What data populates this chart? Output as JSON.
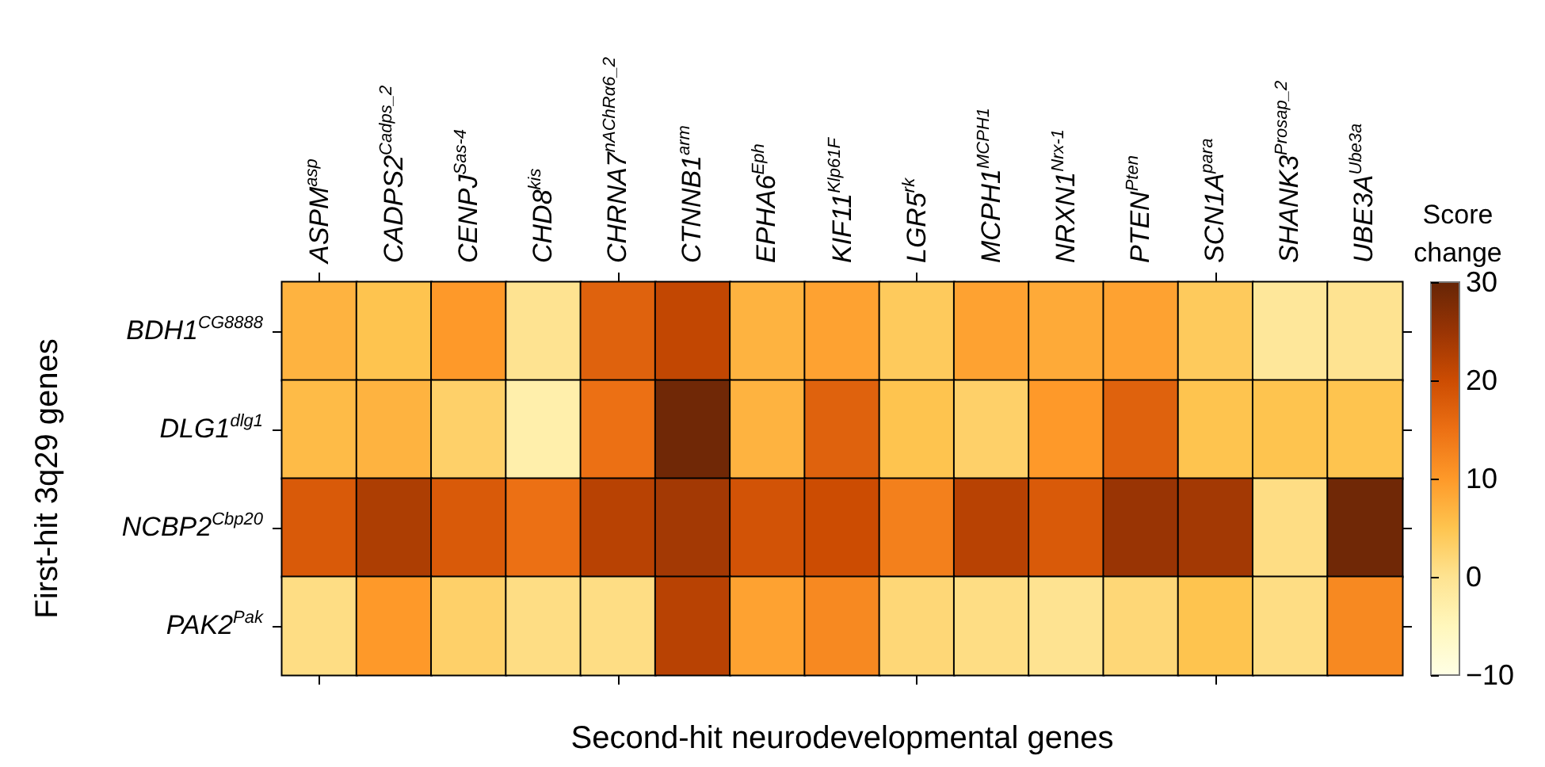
{
  "chart_data": {
    "type": "heatmap",
    "xlabel": "Second-hit neurodevelopmental genes",
    "ylabel": "First-hit 3q29 genes",
    "clabel": "Score change",
    "categories": [
      "ASPM$^{asp}$",
      "CADPS2$^{Cadps_2}$",
      "CENPJ$^{Sas-4}$",
      "CHD8$^{kis}$",
      "CHRNA7$^{nAChRα6_2}$",
      "CTNNB1$^{arm}$",
      "EPHA6$^{Eph}$",
      "KIF11$^{Klp61F}$",
      "LGR5$^{rk}$",
      "MCPH1$^{MCPH1}$",
      "NRXN1$^{Nrx-1}$",
      "PTEN$^{Pten}$",
      "SCN1A$^{para}$",
      "SHANK3$^{Prosap_2}$",
      "UBE3A$^{Ube3a}$"
    ],
    "y_categories": [
      "BDH1$^{CG8888}$",
      "DLG1$^{dlg1}$",
      "NCBP2$^{Cbp20}$",
      "PAK2$^{Pak}$"
    ],
    "cells": [
      [
        7,
        5,
        10,
        0,
        17,
        21,
        7,
        9,
        4,
        9,
        8,
        9,
        4,
        -1,
        0
      ],
      [
        6,
        7,
        3,
        -3,
        15,
        29,
        7,
        17,
        5,
        3,
        10,
        17,
        5,
        5,
        5
      ],
      [
        18,
        23,
        18,
        15,
        22,
        24,
        19,
        20,
        13,
        22,
        18,
        25,
        24,
        1,
        29
      ],
      [
        1,
        10,
        3,
        1,
        1,
        22,
        9,
        12,
        2,
        1,
        0,
        2,
        5,
        1,
        12
      ]
    ],
    "clim": [
      -10,
      30
    ],
    "cticks": [
      -10,
      0,
      10,
      20,
      30
    ]
  }
}
